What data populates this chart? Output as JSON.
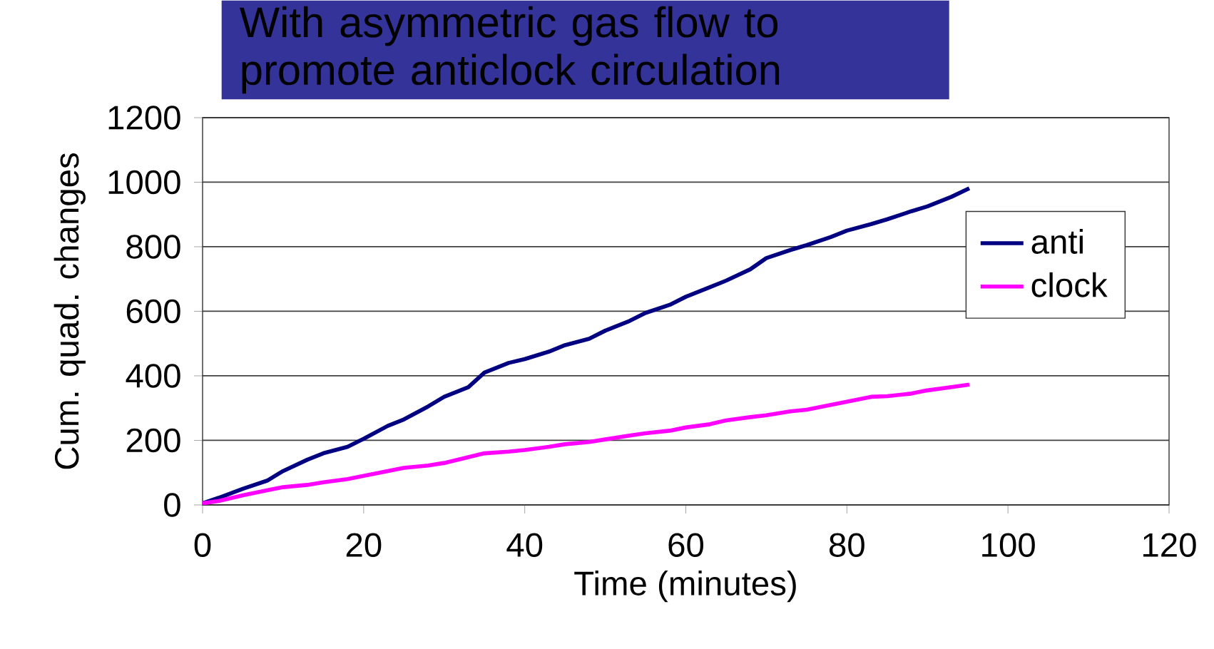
{
  "chart_data": {
    "type": "line",
    "title": "With asymmetric gas flow to promote anticlock circulation",
    "xlabel": "Time (minutes)",
    "ylabel": "Cum. quad. changes",
    "xlim": [
      0,
      120
    ],
    "ylim": [
      0,
      1200
    ],
    "xticks": [
      0,
      20,
      40,
      60,
      80,
      100,
      120
    ],
    "yticks": [
      0,
      200,
      400,
      600,
      800,
      1000,
      1200
    ],
    "grid": "y",
    "legend": "right",
    "marker": "none",
    "line_style": "solid",
    "series": [
      {
        "name": "anti",
        "color": "#000080",
        "x": [
          0,
          2,
          5,
          8,
          10,
          13,
          15,
          18,
          20,
          23,
          25,
          28,
          30,
          33,
          35,
          38,
          40,
          43,
          45,
          48,
          50,
          53,
          55,
          58,
          60,
          63,
          65,
          68,
          70,
          73,
          75,
          78,
          80,
          83,
          85,
          88,
          90,
          93,
          95.2
        ],
        "values": [
          5,
          22,
          50,
          75,
          105,
          140,
          160,
          180,
          205,
          245,
          265,
          305,
          335,
          365,
          410,
          440,
          452,
          475,
          495,
          515,
          540,
          570,
          595,
          620,
          645,
          675,
          695,
          730,
          765,
          790,
          805,
          830,
          850,
          870,
          885,
          910,
          925,
          955,
          981
        ]
      },
      {
        "name": "clock",
        "color": "#ff00ff",
        "x": [
          0,
          2,
          5,
          8,
          10,
          13,
          15,
          18,
          20,
          23,
          25,
          28,
          30,
          33,
          35,
          38,
          40,
          43,
          45,
          48,
          50,
          53,
          55,
          58,
          60,
          63,
          65,
          68,
          70,
          73,
          75,
          78,
          80,
          83,
          85,
          88,
          90,
          93,
          95.2
        ],
        "values": [
          5,
          12,
          30,
          45,
          55,
          62,
          70,
          80,
          90,
          105,
          115,
          122,
          130,
          148,
          160,
          165,
          170,
          180,
          188,
          195,
          203,
          215,
          222,
          230,
          240,
          250,
          262,
          272,
          278,
          290,
          295,
          310,
          320,
          335,
          337,
          345,
          355,
          365,
          373
        ]
      }
    ]
  }
}
